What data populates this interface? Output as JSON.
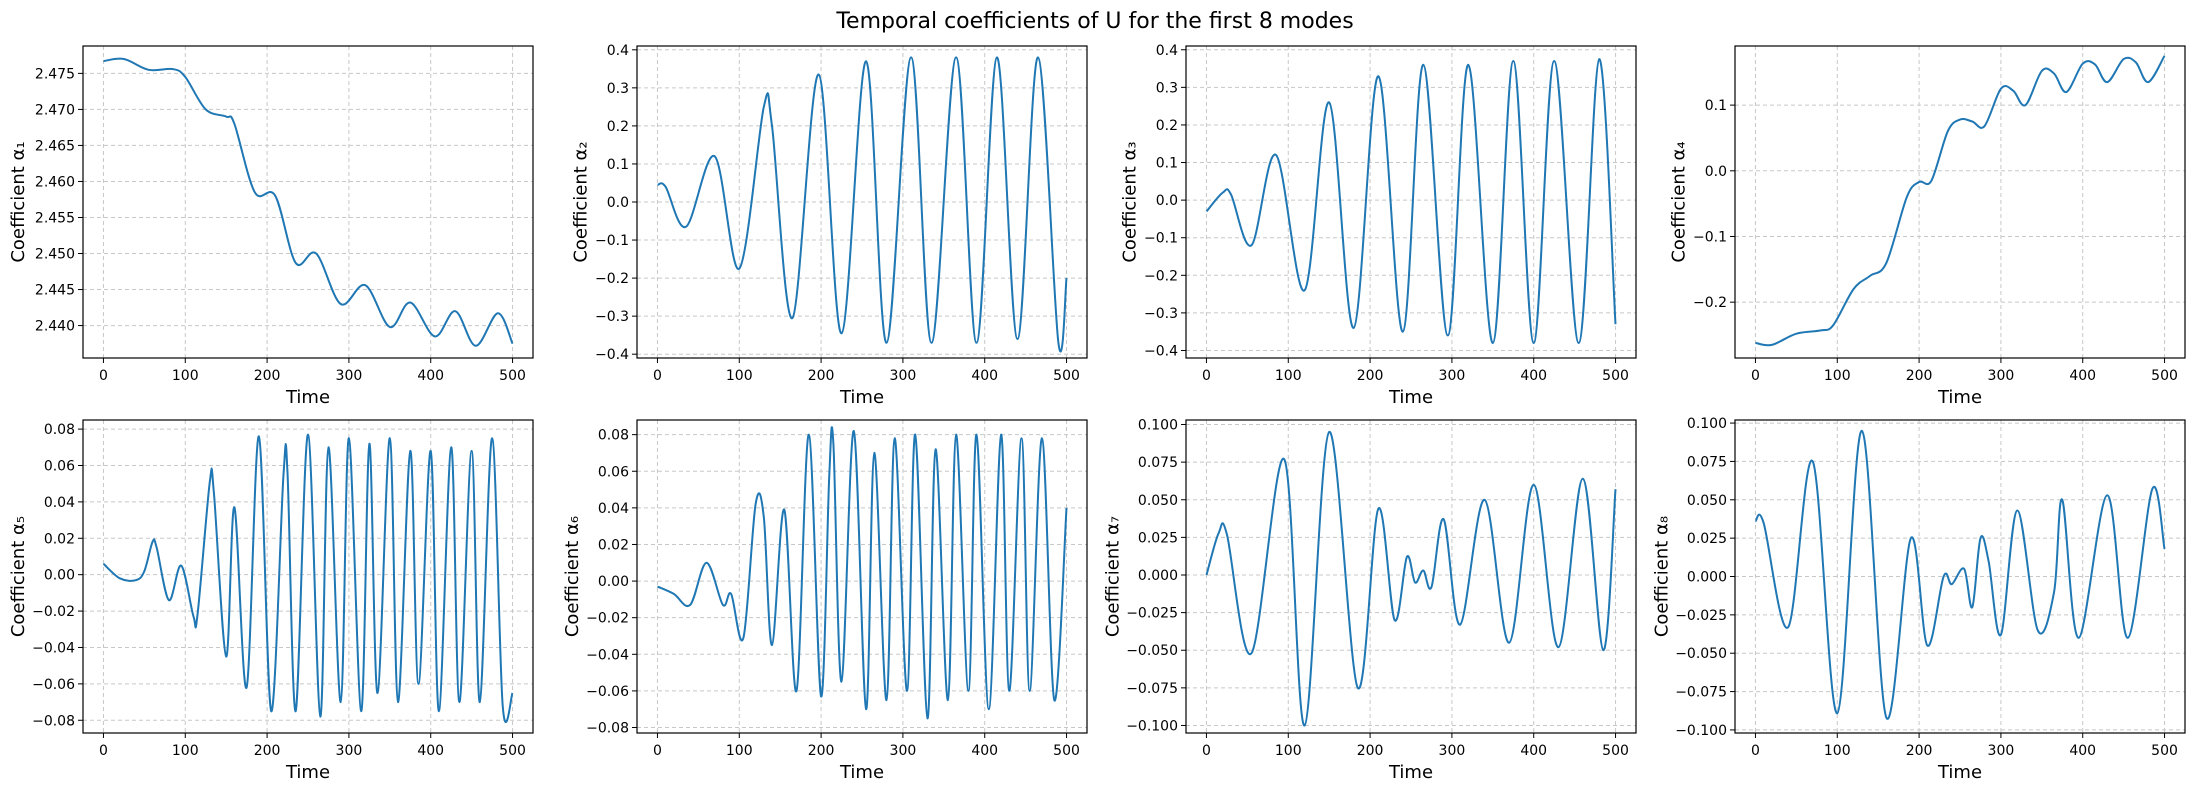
{
  "title": "Temporal coefficients of U for the first 8 modes",
  "line_color": "#1f77b4",
  "grid": true,
  "chart_data": [
    {
      "type": "line",
      "xlabel": "Time",
      "ylabel": "Coefficient α₁",
      "xlim": [
        -25,
        525
      ],
      "ylim": [
        2.4355,
        2.4788
      ],
      "xticks": [
        0,
        100,
        200,
        300,
        400,
        500
      ],
      "yticks": [
        "2.440",
        "2.445",
        "2.450",
        "2.455",
        "2.460",
        "2.465",
        "2.470",
        "2.475"
      ],
      "x": [
        0,
        25,
        55,
        85,
        100,
        125,
        150,
        160,
        185,
        210,
        235,
        260,
        290,
        320,
        350,
        375,
        405,
        430,
        455,
        482,
        500
      ],
      "y": [
        2.4767,
        2.477,
        2.4755,
        2.4756,
        2.4745,
        2.47,
        2.469,
        2.468,
        2.4585,
        2.458,
        2.4487,
        2.45,
        2.443,
        2.4456,
        2.4398,
        2.4432,
        2.4385,
        2.442,
        2.4372,
        2.4417,
        2.4375
      ]
    },
    {
      "type": "line",
      "xlabel": "Time",
      "ylabel": "Coefficient α₂",
      "xlim": [
        -25,
        525
      ],
      "ylim": [
        -0.41,
        0.41
      ],
      "xticks": [
        0,
        100,
        200,
        300,
        400,
        500
      ],
      "yticks": [
        "−0.4",
        "−0.3",
        "−0.2",
        "−0.1",
        "0.0",
        "0.1",
        "0.2",
        "0.3",
        "0.4"
      ],
      "x": [
        0,
        10,
        35,
        70,
        100,
        130,
        140,
        165,
        197,
        225,
        255,
        280,
        310,
        335,
        365,
        390,
        415,
        440,
        465,
        490,
        500
      ],
      "y": [
        0.045,
        0.04,
        -0.065,
        0.12,
        -0.175,
        0.25,
        0.2,
        -0.305,
        0.335,
        -0.345,
        0.37,
        -0.37,
        0.38,
        -0.37,
        0.38,
        -0.37,
        0.38,
        -0.36,
        0.38,
        -0.37,
        -0.2
      ]
    },
    {
      "type": "line",
      "xlabel": "Time",
      "ylabel": "Coefficient α₃",
      "xlim": [
        -25,
        525
      ],
      "ylim": [
        -0.42,
        0.41
      ],
      "xticks": [
        0,
        100,
        200,
        300,
        400,
        500
      ],
      "yticks": [
        "−0.4",
        "−0.3",
        "−0.2",
        "−0.1",
        "0.0",
        "0.1",
        "0.2",
        "0.3",
        "0.4"
      ],
      "x": [
        0,
        20,
        30,
        55,
        85,
        120,
        150,
        180,
        210,
        240,
        265,
        295,
        320,
        350,
        375,
        400,
        425,
        455,
        480,
        500
      ],
      "y": [
        -0.03,
        0.02,
        0.015,
        -0.12,
        0.12,
        -0.24,
        0.26,
        -0.34,
        0.33,
        -0.35,
        0.36,
        -0.36,
        0.36,
        -0.38,
        0.37,
        -0.38,
        0.37,
        -0.38,
        0.375,
        -0.33
      ]
    },
    {
      "type": "line",
      "xlabel": "Time",
      "ylabel": "Coefficient α₄",
      "xlim": [
        -25,
        525
      ],
      "ylim": [
        -0.285,
        0.19
      ],
      "xticks": [
        0,
        100,
        200,
        300,
        400,
        500
      ],
      "yticks": [
        "−0.2",
        "−0.1",
        "0.0",
        "0.1"
      ],
      "x": [
        0,
        20,
        50,
        80,
        95,
        120,
        140,
        160,
        185,
        200,
        215,
        235,
        250,
        265,
        280,
        300,
        315,
        330,
        350,
        365,
        380,
        400,
        415,
        430,
        450,
        465,
        480,
        500
      ],
      "y": [
        -0.262,
        -0.265,
        -0.248,
        -0.243,
        -0.235,
        -0.18,
        -0.16,
        -0.14,
        -0.04,
        -0.017,
        -0.015,
        0.06,
        0.078,
        0.075,
        0.068,
        0.125,
        0.122,
        0.1,
        0.152,
        0.148,
        0.12,
        0.163,
        0.162,
        0.135,
        0.17,
        0.165,
        0.135,
        0.175
      ]
    },
    {
      "type": "line",
      "xlabel": "Time",
      "ylabel": "Coefficient α₅",
      "xlim": [
        -25,
        525
      ],
      "ylim": [
        -0.087,
        0.085
      ],
      "xticks": [
        0,
        100,
        200,
        300,
        400,
        500
      ],
      "yticks": [
        "−0.08",
        "−0.06",
        "−0.04",
        "−0.02",
        "0.00",
        "0.02",
        "0.04",
        "0.06",
        "0.08"
      ],
      "x": [
        0,
        20,
        40,
        50,
        60,
        65,
        80,
        95,
        110,
        115,
        130,
        135,
        150,
        160,
        175,
        190,
        205,
        220,
        225,
        235,
        250,
        265,
        275,
        290,
        300,
        315,
        325,
        335,
        350,
        360,
        375,
        385,
        400,
        410,
        425,
        435,
        450,
        460,
        475,
        488,
        500
      ],
      "y": [
        0.006,
        -0.002,
        -0.003,
        0.002,
        0.018,
        0.015,
        -0.014,
        0.005,
        -0.023,
        -0.022,
        0.051,
        0.045,
        -0.045,
        0.037,
        -0.062,
        0.076,
        -0.075,
        0.055,
        0.056,
        -0.075,
        0.077,
        -0.078,
        0.07,
        -0.07,
        0.075,
        -0.075,
        0.072,
        -0.065,
        0.075,
        -0.07,
        0.068,
        -0.06,
        0.068,
        -0.075,
        0.07,
        -0.07,
        0.068,
        -0.07,
        0.075,
        -0.072,
        -0.065
      ]
    },
    {
      "type": "line",
      "xlabel": "Time",
      "ylabel": "Coefficient α₆",
      "xlim": [
        -25,
        525
      ],
      "ylim": [
        -0.083,
        0.088
      ],
      "xticks": [
        0,
        100,
        200,
        300,
        400,
        500
      ],
      "yticks": [
        "−0.08",
        "−0.06",
        "−0.04",
        "−0.02",
        "0.00",
        "0.02",
        "0.04",
        "0.06",
        "0.08"
      ],
      "x": [
        0,
        20,
        40,
        60,
        80,
        90,
        105,
        120,
        130,
        140,
        155,
        170,
        185,
        200,
        210,
        215,
        225,
        240,
        255,
        265,
        280,
        290,
        305,
        315,
        330,
        340,
        355,
        365,
        380,
        390,
        405,
        420,
        430,
        445,
        455,
        470,
        485,
        500
      ],
      "y": [
        -0.003,
        -0.007,
        -0.013,
        0.01,
        -0.013,
        -0.007,
        -0.031,
        0.042,
        0.035,
        -0.035,
        0.039,
        -0.06,
        0.08,
        -0.063,
        0.058,
        0.075,
        -0.055,
        0.082,
        -0.07,
        0.07,
        -0.065,
        0.078,
        -0.06,
        0.08,
        -0.075,
        0.072,
        -0.065,
        0.08,
        -0.06,
        0.08,
        -0.07,
        0.08,
        -0.06,
        0.078,
        -0.06,
        0.078,
        -0.065,
        0.04
      ]
    },
    {
      "type": "line",
      "xlabel": "Time",
      "ylabel": "Coefficient α₇",
      "xlim": [
        -25,
        525
      ],
      "ylim": [
        -0.105,
        0.103
      ],
      "xticks": [
        0,
        100,
        200,
        300,
        400,
        500
      ],
      "yticks": [
        "−0.100",
        "−0.075",
        "−0.050",
        "−0.025",
        "0.000",
        "0.025",
        "0.050",
        "0.075",
        "0.100"
      ],
      "x": [
        0,
        15,
        25,
        55,
        95,
        120,
        150,
        185,
        210,
        230,
        245,
        255,
        265,
        275,
        290,
        310,
        340,
        370,
        400,
        430,
        460,
        485,
        500
      ],
      "y": [
        0,
        0.028,
        0.027,
        -0.052,
        0.077,
        -0.1,
        0.095,
        -0.075,
        0.044,
        -0.03,
        0.012,
        -0.005,
        0.003,
        -0.008,
        0.037,
        -0.033,
        0.05,
        -0.045,
        0.06,
        -0.048,
        0.064,
        -0.05,
        0.057
      ]
    },
    {
      "type": "line",
      "xlabel": "Time",
      "ylabel": "Coefficient α₈",
      "xlim": [
        -25,
        525
      ],
      "ylim": [
        -0.102,
        0.102
      ],
      "xticks": [
        0,
        100,
        200,
        300,
        400,
        500
      ],
      "yticks": [
        "−0.100",
        "−0.075",
        "−0.050",
        "−0.025",
        "0.000",
        "0.025",
        "0.050",
        "0.075",
        "0.100"
      ],
      "x": [
        0,
        10,
        40,
        70,
        100,
        130,
        160,
        190,
        210,
        230,
        240,
        255,
        265,
        275,
        285,
        300,
        320,
        345,
        365,
        375,
        395,
        430,
        455,
        485,
        500
      ],
      "y": [
        0.036,
        0.035,
        -0.033,
        0.075,
        -0.089,
        0.095,
        -0.092,
        0.025,
        -0.045,
        0.0,
        -0.005,
        0.005,
        -0.02,
        0.025,
        0.01,
        -0.038,
        0.043,
        -0.035,
        -0.01,
        0.05,
        -0.04,
        0.053,
        -0.04,
        0.057,
        0.018
      ]
    }
  ]
}
